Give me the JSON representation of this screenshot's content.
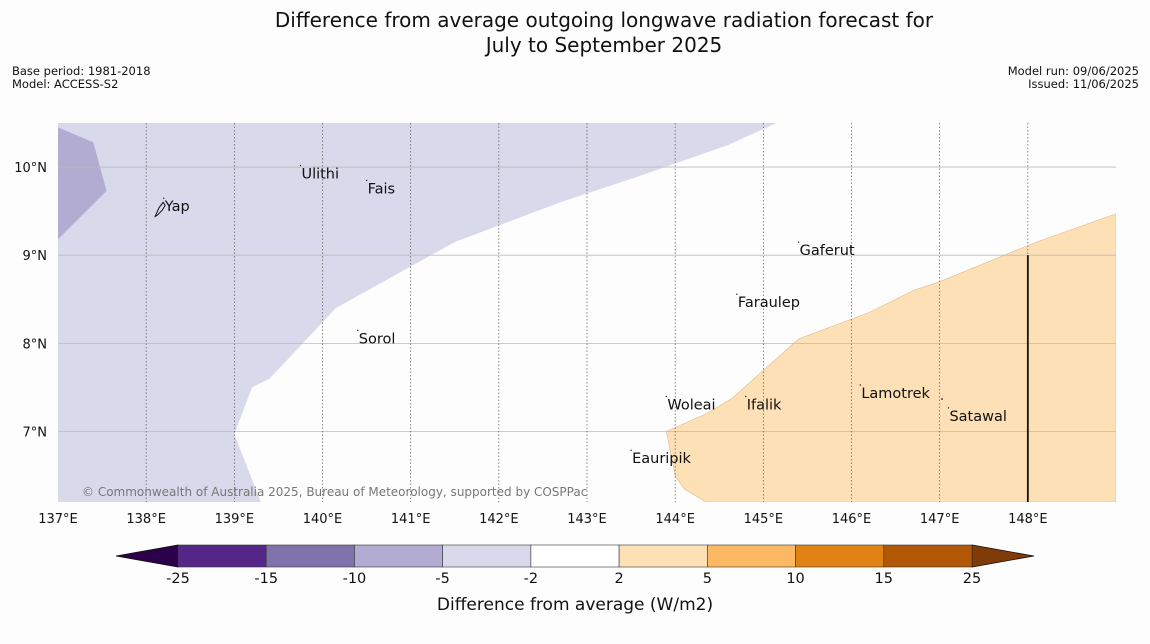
{
  "title": {
    "line1": "Difference from average outgoing longwave radiation forecast for",
    "line2": "July to September 2025"
  },
  "meta_left": {
    "base_period": "Base period: 1981-2018",
    "model": "Model: ACCESS-S2"
  },
  "meta_right": {
    "model_run": "Model run: 09/06/2025",
    "issued": "Issued: 11/06/2025"
  },
  "copyright": "© Commonwealth of Australia 2025, Bureau of Meteorology, supported by COSPPac",
  "map": {
    "lon_range": [
      137,
      149
    ],
    "lat_range": [
      6.2,
      10.5
    ],
    "lon_ticks": [
      {
        "value": 137,
        "label": "137°E"
      },
      {
        "value": 138,
        "label": "138°E"
      },
      {
        "value": 139,
        "label": "139°E"
      },
      {
        "value": 140,
        "label": "140°E"
      },
      {
        "value": 141,
        "label": "141°E"
      },
      {
        "value": 142,
        "label": "142°E"
      },
      {
        "value": 143,
        "label": "143°E"
      },
      {
        "value": 144,
        "label": "144°E"
      },
      {
        "value": 145,
        "label": "145°E"
      },
      {
        "value": 146,
        "label": "146°E"
      },
      {
        "value": 147,
        "label": "147°E"
      },
      {
        "value": 148,
        "label": "148°E"
      }
    ],
    "lat_ticks": [
      {
        "value": 10,
        "label": "10°N"
      },
      {
        "value": 9,
        "label": "9°N"
      },
      {
        "value": 8,
        "label": "8°N"
      },
      {
        "value": 7,
        "label": "7°N"
      }
    ],
    "places": [
      {
        "name": "Yap",
        "lon": 138.2,
        "lat": 9.5
      },
      {
        "name": "Ulithi",
        "lon": 139.75,
        "lat": 9.87
      },
      {
        "name": "Fais",
        "lon": 140.5,
        "lat": 9.7
      },
      {
        "name": "Gaferut",
        "lon": 145.4,
        "lat": 9.0
      },
      {
        "name": "Faraulep",
        "lon": 144.7,
        "lat": 8.41
      },
      {
        "name": "Sorol",
        "lon": 140.4,
        "lat": 8.0
      },
      {
        "name": "Woleai",
        "lon": 143.9,
        "lat": 7.25
      },
      {
        "name": "Ifalik",
        "lon": 144.8,
        "lat": 7.25
      },
      {
        "name": "Lamotrek",
        "lon": 146.1,
        "lat": 7.38
      },
      {
        "name": "Satawal",
        "lon": 147.1,
        "lat": 7.12
      },
      {
        "name": "Eauripik",
        "lon": 143.5,
        "lat": 6.64
      }
    ],
    "anomaly_regions": [
      {
        "category": "-5 to -2",
        "color": "#d8d9ea",
        "points": [
          [
            137,
            10.5
          ],
          [
            145.15,
            10.5
          ],
          [
            144.6,
            10.25
          ],
          [
            143.6,
            9.9
          ],
          [
            142.7,
            9.6
          ],
          [
            141.5,
            9.15
          ],
          [
            140.6,
            8.65
          ],
          [
            140.15,
            8.4
          ],
          [
            139.4,
            7.6
          ],
          [
            139.2,
            7.5
          ],
          [
            139,
            6.97
          ],
          [
            139.3,
            6.2
          ],
          [
            137,
            6.2
          ]
        ]
      },
      {
        "category": "-10 to -5",
        "color": "#b2abd2",
        "points": [
          [
            137,
            10.45
          ],
          [
            137.4,
            10.28
          ],
          [
            137.55,
            9.73
          ],
          [
            137,
            9.18
          ]
        ]
      },
      {
        "category": "2 to 5",
        "color": "#fee0b6",
        "points": [
          [
            143.9,
            7.0
          ],
          [
            144.35,
            7.2
          ],
          [
            144.65,
            7.38
          ],
          [
            145.4,
            8.05
          ],
          [
            146.2,
            8.35
          ],
          [
            146.7,
            8.6
          ],
          [
            147.0,
            8.7
          ],
          [
            148.1,
            9.15
          ],
          [
            149,
            9.47
          ],
          [
            149,
            6.2
          ],
          [
            144.35,
            6.2
          ],
          [
            144.1,
            6.35
          ],
          [
            144.0,
            6.5
          ]
        ]
      }
    ],
    "vertical_line_lon": 148.0,
    "vertical_line_lat": [
      6.2,
      9.0
    ]
  },
  "colorbar": {
    "title": "Difference from average (W/m2)",
    "extend_low_color": "#2d004b",
    "extend_high_color": "#7f3b08",
    "segments": [
      "#542788",
      "#8073ac",
      "#b2abd2",
      "#d8d9ea",
      "#ffffff",
      "#fee0b6",
      "#fdb863",
      "#e08214",
      "#b35806"
    ],
    "tick_labels": [
      "-25",
      "-15",
      "-10",
      "-5",
      "-2",
      "2",
      "5",
      "10",
      "15",
      "25"
    ]
  }
}
